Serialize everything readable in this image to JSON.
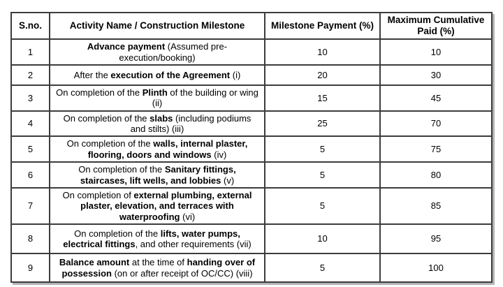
{
  "table": {
    "columns": [
      "S.no.",
      "Activity Name / Construction Milestone",
      "Milestone Payment (%)",
      "Maximum Cumulative Paid (%)"
    ],
    "rows": [
      {
        "sno": "1",
        "activity": [
          {
            "text": "Advance payment",
            "bold": true
          },
          {
            "text": " (Assumed pre-execution/booking)",
            "bold": false
          }
        ],
        "payment": "10",
        "cumulative": "10",
        "cumulative_bold": false
      },
      {
        "sno": "2",
        "activity": [
          {
            "text": "After the ",
            "bold": false
          },
          {
            "text": "execution of the Agreement",
            "bold": true
          },
          {
            "text": " (i)",
            "bold": false
          }
        ],
        "payment": "20",
        "cumulative": "30",
        "cumulative_bold": true
      },
      {
        "sno": "3",
        "activity": [
          {
            "text": "On completion of the ",
            "bold": false
          },
          {
            "text": "Plinth",
            "bold": true
          },
          {
            "text": " of the building or wing (ii)",
            "bold": false
          }
        ],
        "payment": "15",
        "cumulative": "45",
        "cumulative_bold": true
      },
      {
        "sno": "4",
        "activity": [
          {
            "text": "On completion of the ",
            "bold": false
          },
          {
            "text": "slabs",
            "bold": true
          },
          {
            "text": " (including podiums and stilts) (iii)",
            "bold": false
          }
        ],
        "payment": "25",
        "cumulative": "70",
        "cumulative_bold": true
      },
      {
        "sno": "5",
        "activity": [
          {
            "text": "On completion of the ",
            "bold": false
          },
          {
            "text": "walls, internal plaster, flooring, doors and windows",
            "bold": true
          },
          {
            "text": " (iv)",
            "bold": false
          }
        ],
        "payment": "5",
        "cumulative": "75",
        "cumulative_bold": true
      },
      {
        "sno": "6",
        "activity": [
          {
            "text": "On completion of the ",
            "bold": false
          },
          {
            "text": "Sanitary fittings, staircases, lift wells, and lobbies",
            "bold": true
          },
          {
            "text": " (v)",
            "bold": false
          }
        ],
        "payment": "5",
        "cumulative": "80",
        "cumulative_bold": true
      },
      {
        "sno": "7",
        "activity": [
          {
            "text": "On completion of ",
            "bold": false
          },
          {
            "text": "external plumbing, external plaster, elevation, and terraces with waterproofing",
            "bold": true
          },
          {
            "text": " (vi)",
            "bold": false
          }
        ],
        "payment": "5",
        "cumulative": "85",
        "cumulative_bold": true
      },
      {
        "sno": "8",
        "activity": [
          {
            "text": "On completion of the ",
            "bold": false
          },
          {
            "text": "lifts, water pumps, electrical fittings",
            "bold": true
          },
          {
            "text": ", and other requirements (vii)",
            "bold": false
          }
        ],
        "payment": "10",
        "cumulative": "95",
        "cumulative_bold": true
      },
      {
        "sno": "9",
        "activity": [
          {
            "text": "Balance amount",
            "bold": true
          },
          {
            "text": " at the time of ",
            "bold": false
          },
          {
            "text": "handing over of possession",
            "bold": true
          },
          {
            "text": " (on or after receipt of OC/CC) (viii)",
            "bold": false
          }
        ],
        "payment": "5",
        "cumulative": "100",
        "cumulative_bold": true
      }
    ]
  }
}
